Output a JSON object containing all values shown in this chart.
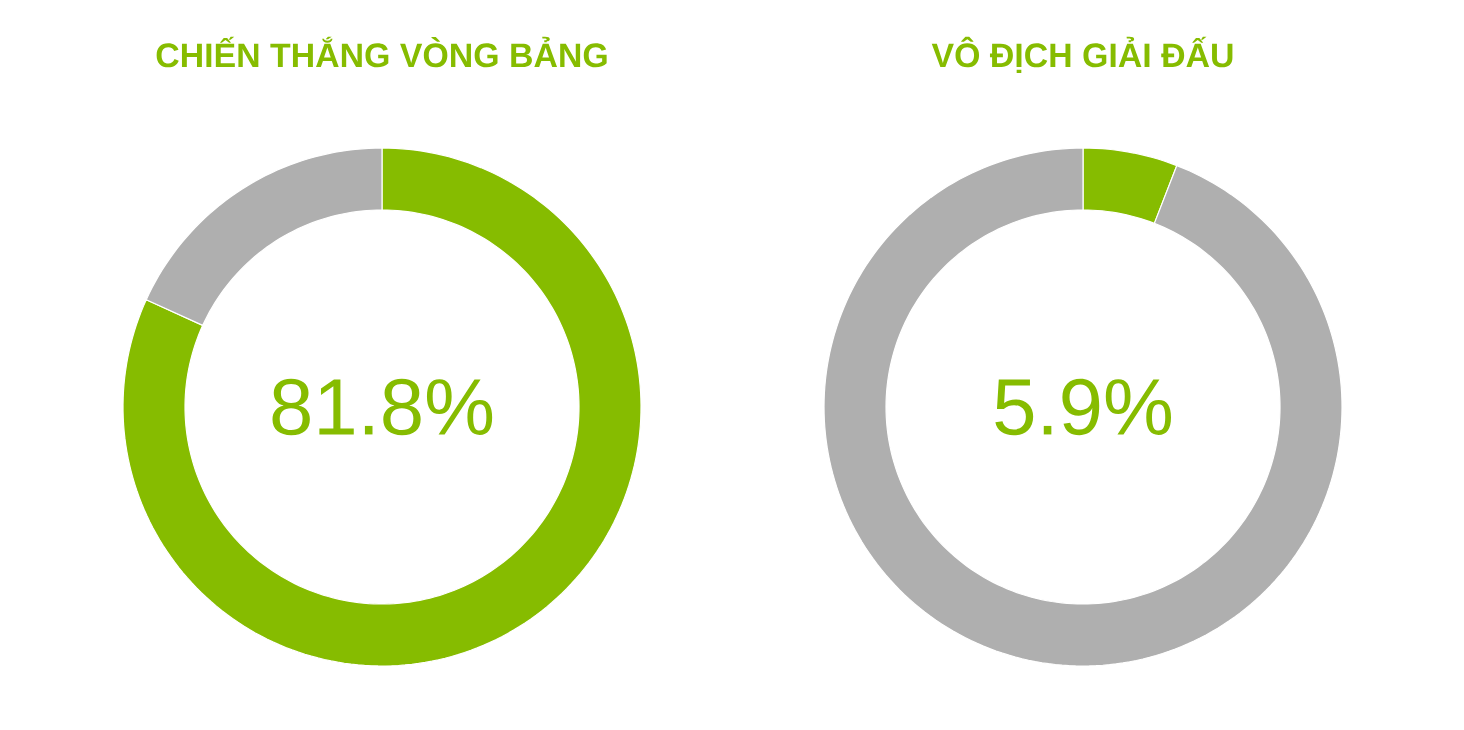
{
  "chart_data": [
    {
      "type": "donut",
      "title": "CHIẾN THẮNG VÒNG BẢNG",
      "categories": [
        null,
        null
      ],
      "values": [
        81.8,
        18.2
      ],
      "colors": [
        "#86bc00",
        "#afafaf"
      ],
      "annotations": [
        "81.8%"
      ]
    },
    {
      "type": "donut",
      "title": "VÔ ĐỊCH GIẢI ĐẤU",
      "categories": [
        null,
        null
      ],
      "values": [
        5.9,
        94.1
      ],
      "colors": [
        "#86bc00",
        "#afafaf"
      ],
      "annotations": [
        "5.9%"
      ]
    }
  ]
}
